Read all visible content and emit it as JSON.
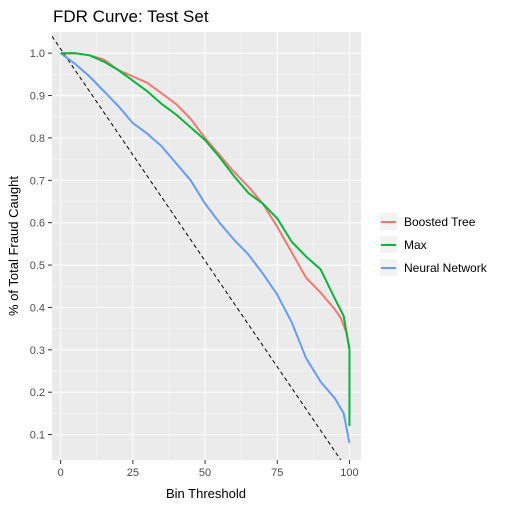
{
  "chart_data": {
    "type": "line",
    "title": "FDR Curve: Test Set",
    "xlabel": "Bin Threshold",
    "ylabel": "% of Total Fraud Caught",
    "xlim": [
      -3,
      104
    ],
    "ylim": [
      0.04,
      1.05
    ],
    "x_ticks": [
      "0",
      "25",
      "50",
      "75",
      "100"
    ],
    "y_ticks": [
      "0.1",
      "0.2",
      "0.3",
      "0.4",
      "0.5",
      "0.6",
      "0.7",
      "0.8",
      "0.9",
      "1.0"
    ],
    "grid": true,
    "legend_position": "right",
    "series": [
      {
        "name": "Boosted Tree",
        "color": "#f8766d",
        "x": [
          0,
          5,
          10,
          15,
          20,
          25,
          30,
          35,
          40,
          45,
          50,
          55,
          60,
          65,
          70,
          75,
          80,
          85,
          90,
          95,
          97,
          99,
          100
        ],
        "y": [
          1.0,
          1.0,
          0.995,
          0.985,
          0.96,
          0.945,
          0.93,
          0.905,
          0.88,
          0.845,
          0.8,
          0.76,
          0.72,
          0.685,
          0.645,
          0.59,
          0.53,
          0.47,
          0.435,
          0.395,
          0.375,
          0.34,
          0.305
        ]
      },
      {
        "name": "Max",
        "color": "#00ba38",
        "x": [
          0,
          5,
          10,
          15,
          20,
          25,
          30,
          35,
          40,
          45,
          50,
          55,
          60,
          65,
          70,
          75,
          80,
          85,
          90,
          95,
          98,
          99,
          100,
          100
        ],
        "y": [
          1.0,
          1.0,
          0.995,
          0.98,
          0.96,
          0.935,
          0.91,
          0.88,
          0.855,
          0.825,
          0.795,
          0.755,
          0.71,
          0.67,
          0.645,
          0.61,
          0.555,
          0.52,
          0.49,
          0.42,
          0.38,
          0.34,
          0.3,
          0.12
        ]
      },
      {
        "name": "Neural Network",
        "color": "#619cff",
        "x": [
          0,
          5,
          10,
          15,
          20,
          25,
          30,
          35,
          40,
          45,
          50,
          55,
          60,
          65,
          70,
          75,
          80,
          85,
          90,
          95,
          98,
          100
        ],
        "y": [
          1.0,
          0.975,
          0.945,
          0.91,
          0.875,
          0.835,
          0.81,
          0.78,
          0.74,
          0.7,
          0.645,
          0.6,
          0.56,
          0.525,
          0.48,
          0.43,
          0.365,
          0.28,
          0.225,
          0.185,
          0.15,
          0.08
        ]
      },
      {
        "name": "",
        "color": "#000000",
        "dashed": true,
        "x": [
          -3,
          97
        ],
        "y": [
          1.04,
          0.04
        ]
      }
    ]
  }
}
